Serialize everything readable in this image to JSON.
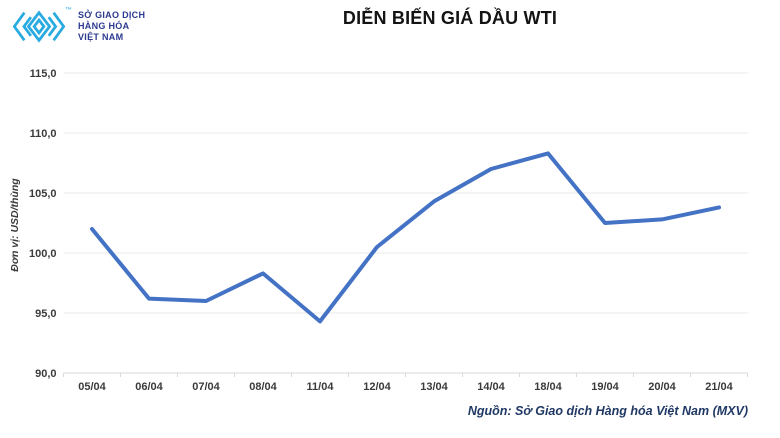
{
  "header": {
    "logo": {
      "line1": "SỞ GIAO DỊCH",
      "line2": "HÀNG HÓA",
      "line3": "VIỆT NAM",
      "trademark": "™",
      "mark_color": "#29abe2",
      "text_color": "#2b3990"
    },
    "title": "DIỄN BIẾN GIÁ DẦU WTI"
  },
  "chart_data": {
    "type": "line",
    "title": "DIỄN BIẾN GIÁ DẦU WTI",
    "ylabel": "Đơn vị: USD/thùng",
    "xlabel": "",
    "categories": [
      "05/04",
      "06/04",
      "07/04",
      "08/04",
      "11/04",
      "12/04",
      "13/04",
      "14/04",
      "18/04",
      "19/04",
      "20/04",
      "21/04"
    ],
    "values": [
      102.0,
      96.2,
      96.0,
      98.3,
      94.3,
      100.5,
      104.3,
      107.0,
      108.3,
      102.5,
      102.8,
      103.8
    ],
    "ylim": [
      90,
      115
    ],
    "ytick_step": 5,
    "ytick_labels": [
      "115,0",
      "110,0",
      "105,0",
      "100,0",
      "95,0",
      "90,0"
    ],
    "line_color": "#4472c4",
    "grid_color": "#e8e8e8",
    "axis_color": "#d9d9d9",
    "grid": true,
    "legend_position": "none"
  },
  "footer": {
    "source": "Nguồn: Sở Giao dịch Hàng hóa Việt Nam (MXV)"
  }
}
